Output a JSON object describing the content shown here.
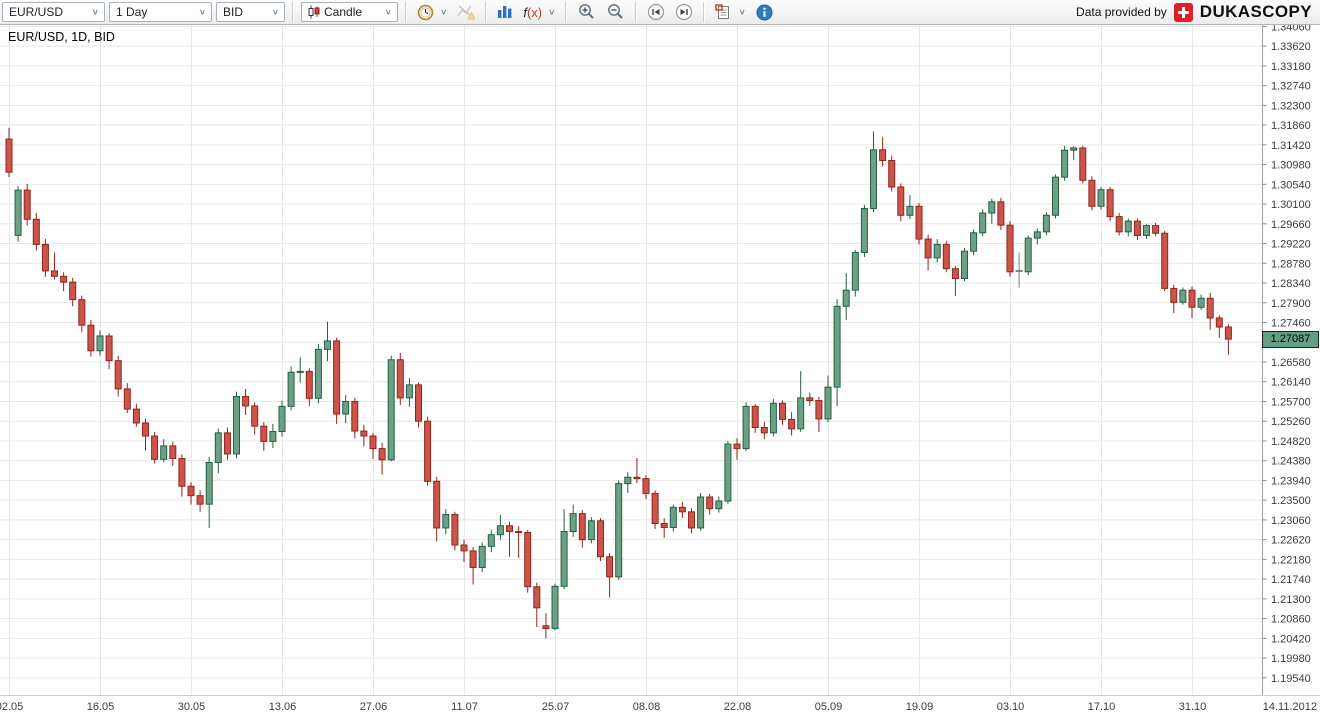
{
  "toolbar": {
    "instrument": "EUR/USD",
    "period": "1 Day",
    "side": "BID",
    "chart_type": "Candle",
    "fx_label": "f",
    "fx_label_arg": "(x)",
    "provider_prefix": "Data provided by",
    "provider_brand": "DUKASCOPY"
  },
  "chart": {
    "title": "EUR/USD, 1D, BID",
    "last_price": "1.27087",
    "last_date": "14.11.2012"
  },
  "chart_data": {
    "type": "candlestick",
    "title": "EUR/USD, 1D, BID",
    "instrument": "EUR/USD",
    "period": "1D",
    "side": "BID",
    "last_price": 1.27087,
    "y_axis": {
      "top": 1.3406,
      "bottom": 1.1954,
      "step": 0.0044,
      "labels": [
        "1.34060",
        "1.33620",
        "1.33180",
        "1.32740",
        "1.32300",
        "1.31860",
        "1.31420",
        "1.30980",
        "1.30540",
        "1.30100",
        "1.29660",
        "1.29220",
        "1.28780",
        "1.28340",
        "1.27900",
        "1.27460",
        "1.27020",
        "1.26580",
        "1.26140",
        "1.25700",
        "1.25260",
        "1.24820",
        "1.24380",
        "1.23940",
        "1.23500",
        "1.23060",
        "1.22620",
        "1.22180",
        "1.21740",
        "1.21300",
        "1.20860",
        "1.20420",
        "1.19980",
        "1.19540"
      ]
    },
    "x_ticks": [
      {
        "i": 0,
        "label": "02.05"
      },
      {
        "i": 10,
        "label": "16.05"
      },
      {
        "i": 20,
        "label": "30.05"
      },
      {
        "i": 30,
        "label": "13.06"
      },
      {
        "i": 40,
        "label": "27.06"
      },
      {
        "i": 50,
        "label": "11.07"
      },
      {
        "i": 60,
        "label": "25.07"
      },
      {
        "i": 70,
        "label": "08.08"
      },
      {
        "i": 80,
        "label": "22.08"
      },
      {
        "i": 90,
        "label": "05.09"
      },
      {
        "i": 100,
        "label": "19.09"
      },
      {
        "i": 110,
        "label": "03.10"
      },
      {
        "i": 120,
        "label": "17.10"
      },
      {
        "i": 130,
        "label": "31.10"
      }
    ],
    "last_x_label": "14.11.2012",
    "colors": {
      "up_fill": "#6ba186",
      "up_stroke": "#275f45",
      "down_fill": "#cd544a",
      "down_stroke": "#8f261c",
      "neutral": "#7f7f7f",
      "grid": "#e7e7e7",
      "badge_bg": "#63a083",
      "badge_border": "#222222",
      "axis": "#9e9e9e"
    },
    "candles": [
      [
        1.3155,
        1.318,
        1.307,
        1.3081
      ],
      [
        1.294,
        1.305,
        1.2926,
        1.3041
      ],
      [
        1.3041,
        1.3055,
        1.2962,
        1.2976
      ],
      [
        1.2976,
        1.299,
        1.2906,
        1.292
      ],
      [
        1.292,
        1.2932,
        1.2848,
        1.2861
      ],
      [
        1.2861,
        1.2902,
        1.2842,
        1.2849
      ],
      [
        1.2849,
        1.2858,
        1.2816,
        1.2836
      ],
      [
        1.2836,
        1.2846,
        1.2782,
        1.2797
      ],
      [
        1.2797,
        1.2806,
        1.2724,
        1.274
      ],
      [
        1.274,
        1.2752,
        1.267,
        1.2683
      ],
      [
        1.2683,
        1.2728,
        1.2672,
        1.2716
      ],
      [
        1.2716,
        1.2722,
        1.2642,
        1.2661
      ],
      [
        1.2661,
        1.2672,
        1.2581,
        1.2598
      ],
      [
        1.2598,
        1.2611,
        1.2544,
        1.2553
      ],
      [
        1.2553,
        1.2565,
        1.2514,
        1.2522
      ],
      [
        1.2522,
        1.2532,
        1.2461,
        1.2493
      ],
      [
        1.2493,
        1.2502,
        1.2432,
        1.2441
      ],
      [
        1.2441,
        1.2486,
        1.2434,
        1.2471
      ],
      [
        1.2471,
        1.248,
        1.2426,
        1.2443
      ],
      [
        1.2443,
        1.2452,
        1.2358,
        1.2381
      ],
      [
        1.2381,
        1.239,
        1.234,
        1.236
      ],
      [
        1.236,
        1.2372,
        1.2324,
        1.2341
      ],
      [
        1.2341,
        1.2446,
        1.2288,
        1.2434
      ],
      [
        1.2434,
        1.251,
        1.241,
        1.25
      ],
      [
        1.25,
        1.2512,
        1.244,
        1.2453
      ],
      [
        1.2453,
        1.2592,
        1.2443,
        1.2581
      ],
      [
        1.2581,
        1.2598,
        1.254,
        1.256
      ],
      [
        1.256,
        1.2568,
        1.2496,
        1.2515
      ],
      [
        1.2515,
        1.2524,
        1.246,
        1.2481
      ],
      [
        1.2481,
        1.252,
        1.2466,
        1.2503
      ],
      [
        1.2503,
        1.2572,
        1.2492,
        1.2559
      ],
      [
        1.2559,
        1.2648,
        1.255,
        1.2635
      ],
      [
        1.2635,
        1.2668,
        1.2612,
        1.2637
      ],
      [
        1.2637,
        1.2644,
        1.256,
        1.2577
      ],
      [
        1.2577,
        1.2698,
        1.2566,
        1.2686
      ],
      [
        1.2686,
        1.2748,
        1.266,
        1.2705
      ],
      [
        1.2705,
        1.2712,
        1.252,
        1.2542
      ],
      [
        1.2542,
        1.2584,
        1.2522,
        1.257
      ],
      [
        1.257,
        1.2578,
        1.2488,
        1.2504
      ],
      [
        1.2504,
        1.2518,
        1.247,
        1.2493
      ],
      [
        1.2493,
        1.25,
        1.2442,
        1.2465
      ],
      [
        1.2465,
        1.2478,
        1.2407,
        1.244
      ],
      [
        1.244,
        1.2672,
        1.2436,
        1.2663
      ],
      [
        1.2663,
        1.2678,
        1.2562,
        1.2578
      ],
      [
        1.2578,
        1.2622,
        1.2558,
        1.2607
      ],
      [
        1.2607,
        1.2612,
        1.2512,
        1.2526
      ],
      [
        1.2526,
        1.2536,
        1.2382,
        1.2392
      ],
      [
        1.2392,
        1.2402,
        1.2258,
        1.2288
      ],
      [
        1.2288,
        1.233,
        1.2274,
        1.2318
      ],
      [
        1.2318,
        1.2324,
        1.2238,
        1.225
      ],
      [
        1.225,
        1.2262,
        1.2212,
        1.2237
      ],
      [
        1.2237,
        1.2246,
        1.2162,
        1.22
      ],
      [
        1.22,
        1.2256,
        1.219,
        1.2247
      ],
      [
        1.2247,
        1.2284,
        1.2234,
        1.2273
      ],
      [
        1.2273,
        1.2317,
        1.2262,
        1.2293
      ],
      [
        1.2293,
        1.2302,
        1.2224,
        1.228
      ],
      [
        1.228,
        1.2292,
        1.2222,
        1.2278
      ],
      [
        1.2278,
        1.2284,
        1.2144,
        1.2157
      ],
      [
        1.2157,
        1.2166,
        1.2067,
        1.211
      ],
      [
        1.207,
        1.2098,
        1.2042,
        1.2064
      ],
      [
        1.2064,
        1.2164,
        1.206,
        1.2158
      ],
      [
        1.2158,
        1.233,
        1.2152,
        1.228
      ],
      [
        1.228,
        1.234,
        1.2268,
        1.232
      ],
      [
        1.232,
        1.2328,
        1.2244,
        1.2262
      ],
      [
        1.2262,
        1.2312,
        1.2254,
        1.2304
      ],
      [
        1.2304,
        1.231,
        1.2214,
        1.2224
      ],
      [
        1.2224,
        1.2232,
        1.2133,
        1.2179
      ],
      [
        1.2179,
        1.2394,
        1.2172,
        1.2387
      ],
      [
        1.2387,
        1.2412,
        1.2366,
        1.2401
      ],
      [
        1.2401,
        1.2444,
        1.2388,
        1.2398
      ],
      [
        1.2398,
        1.2406,
        1.2352,
        1.2365
      ],
      [
        1.2365,
        1.2372,
        1.2286,
        1.2298
      ],
      [
        1.2298,
        1.231,
        1.2266,
        1.2289
      ],
      [
        1.2289,
        1.234,
        1.228,
        1.2334
      ],
      [
        1.2334,
        1.2346,
        1.231,
        1.2324
      ],
      [
        1.2324,
        1.2332,
        1.2276,
        1.2288
      ],
      [
        1.2288,
        1.2366,
        1.2282,
        1.2357
      ],
      [
        1.2357,
        1.2364,
        1.2318,
        1.2331
      ],
      [
        1.2331,
        1.2358,
        1.2322,
        1.2348
      ],
      [
        1.2348,
        1.2482,
        1.2342,
        1.2475
      ],
      [
        1.2475,
        1.2488,
        1.244,
        1.2465
      ],
      [
        1.2465,
        1.2568,
        1.246,
        1.2559
      ],
      [
        1.2559,
        1.2564,
        1.25,
        1.2512
      ],
      [
        1.2512,
        1.2524,
        1.2486,
        1.25
      ],
      [
        1.25,
        1.2576,
        1.2492,
        1.2566
      ],
      [
        1.2566,
        1.2572,
        1.2518,
        1.253
      ],
      [
        1.253,
        1.2546,
        1.2494,
        1.2509
      ],
      [
        1.2509,
        1.2638,
        1.2502,
        1.2578
      ],
      [
        1.2578,
        1.259,
        1.256,
        1.2572
      ],
      [
        1.2572,
        1.258,
        1.2502,
        1.2531
      ],
      [
        1.2531,
        1.2628,
        1.2524,
        1.2602
      ],
      [
        1.2602,
        1.2798,
        1.256,
        1.2782
      ],
      [
        1.2782,
        1.2856,
        1.2752,
        1.2818
      ],
      [
        1.2818,
        1.2908,
        1.2804,
        1.2902
      ],
      [
        1.2902,
        1.3008,
        1.2892,
        1.3
      ],
      [
        1.3,
        1.3172,
        1.2992,
        1.3131
      ],
      [
        1.3131,
        1.316,
        1.3094,
        1.3107
      ],
      [
        1.3107,
        1.3118,
        1.3038,
        1.3048
      ],
      [
        1.3048,
        1.3056,
        1.2972,
        1.2985
      ],
      [
        1.2985,
        1.303,
        1.2976,
        1.3005
      ],
      [
        1.3005,
        1.3012,
        1.292,
        1.2932
      ],
      [
        1.2932,
        1.2942,
        1.2862,
        1.289
      ],
      [
        1.289,
        1.2932,
        1.288,
        1.292
      ],
      [
        1.292,
        1.2928,
        1.2858,
        1.2866
      ],
      [
        1.2866,
        1.2872,
        1.2805,
        1.2844
      ],
      [
        1.2844,
        1.2912,
        1.2838,
        1.2905
      ],
      [
        1.2905,
        1.2954,
        1.2896,
        1.2946
      ],
      [
        1.2946,
        1.2998,
        1.2938,
        1.299
      ],
      [
        1.299,
        1.3022,
        1.2966,
        1.3015
      ],
      [
        1.3015,
        1.3024,
        1.2952,
        1.2963
      ],
      [
        1.2963,
        1.2972,
        1.2848,
        1.2859
      ],
      [
        1.2862,
        1.2902,
        1.2824,
        1.2862
      ],
      [
        1.2859,
        1.294,
        1.2852,
        1.2934
      ],
      [
        1.2934,
        1.2956,
        1.292,
        1.2948
      ],
      [
        1.2948,
        1.2992,
        1.294,
        1.2985
      ],
      [
        1.2985,
        1.3076,
        1.2978,
        1.307
      ],
      [
        1.307,
        1.314,
        1.3062,
        1.313
      ],
      [
        1.313,
        1.3139,
        1.3108,
        1.3135
      ],
      [
        1.3135,
        1.314,
        1.3056,
        1.3063
      ],
      [
        1.3063,
        1.3072,
        1.2996,
        1.3005
      ],
      [
        1.3005,
        1.3048,
        1.2998,
        1.3042
      ],
      [
        1.3042,
        1.3048,
        1.2972,
        1.2982
      ],
      [
        1.2982,
        1.299,
        1.294,
        1.2948
      ],
      [
        1.2948,
        1.2978,
        1.2938,
        1.2972
      ],
      [
        1.2972,
        1.2978,
        1.293,
        1.294
      ],
      [
        1.294,
        1.2966,
        1.2932,
        1.2962
      ],
      [
        1.2962,
        1.2968,
        1.2938,
        1.2945
      ],
      [
        1.2945,
        1.295,
        1.2816,
        1.2822
      ],
      [
        1.2822,
        1.283,
        1.2767,
        1.2791
      ],
      [
        1.2791,
        1.2824,
        1.2786,
        1.2818
      ],
      [
        1.2818,
        1.2826,
        1.2756,
        1.278
      ],
      [
        1.278,
        1.2808,
        1.2774,
        1.28
      ],
      [
        1.28,
        1.2812,
        1.273,
        1.2756
      ],
      [
        1.2756,
        1.2762,
        1.2712,
        1.2736
      ],
      [
        1.2736,
        1.2742,
        1.2674,
        1.2709
      ]
    ]
  }
}
